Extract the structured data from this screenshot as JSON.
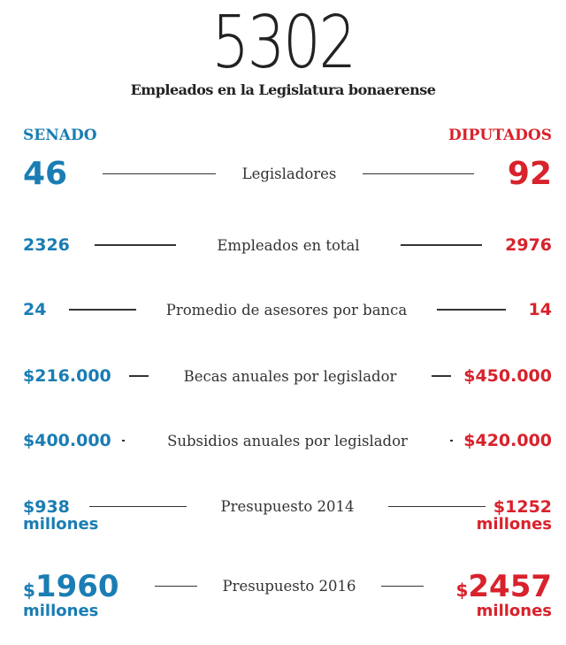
{
  "title": {
    "total": "5302",
    "subtitle": "Empleados en la Legislatura bonaerense"
  },
  "headers": {
    "left": "SENADO",
    "right": "DIPUTADOS"
  },
  "colors": {
    "senado": "#1a7db3",
    "diputados": "#d8222c"
  },
  "rows": [
    {
      "label": "Legisladores",
      "senado": "46",
      "diputados": "92"
    },
    {
      "label": "Empleados en total",
      "senado": "2326",
      "diputados": "2976"
    },
    {
      "label": "Promedio de asesores por banca",
      "senado": "24",
      "diputados": "14"
    },
    {
      "label": "Becas anuales por legislador",
      "senado": "$216.000",
      "diputados": "$450.000"
    },
    {
      "label": "Subsidios anuales por legislador",
      "senado": "$400.000",
      "diputados": "$420.000"
    },
    {
      "label": "Presupuesto 2014",
      "senado": "$938",
      "diputados": "$1252",
      "unit": "millones"
    },
    {
      "label": "Presupuesto 2016",
      "senado": "1960",
      "diputados": "2457",
      "currency": "$",
      "unit": "millones"
    }
  ]
}
